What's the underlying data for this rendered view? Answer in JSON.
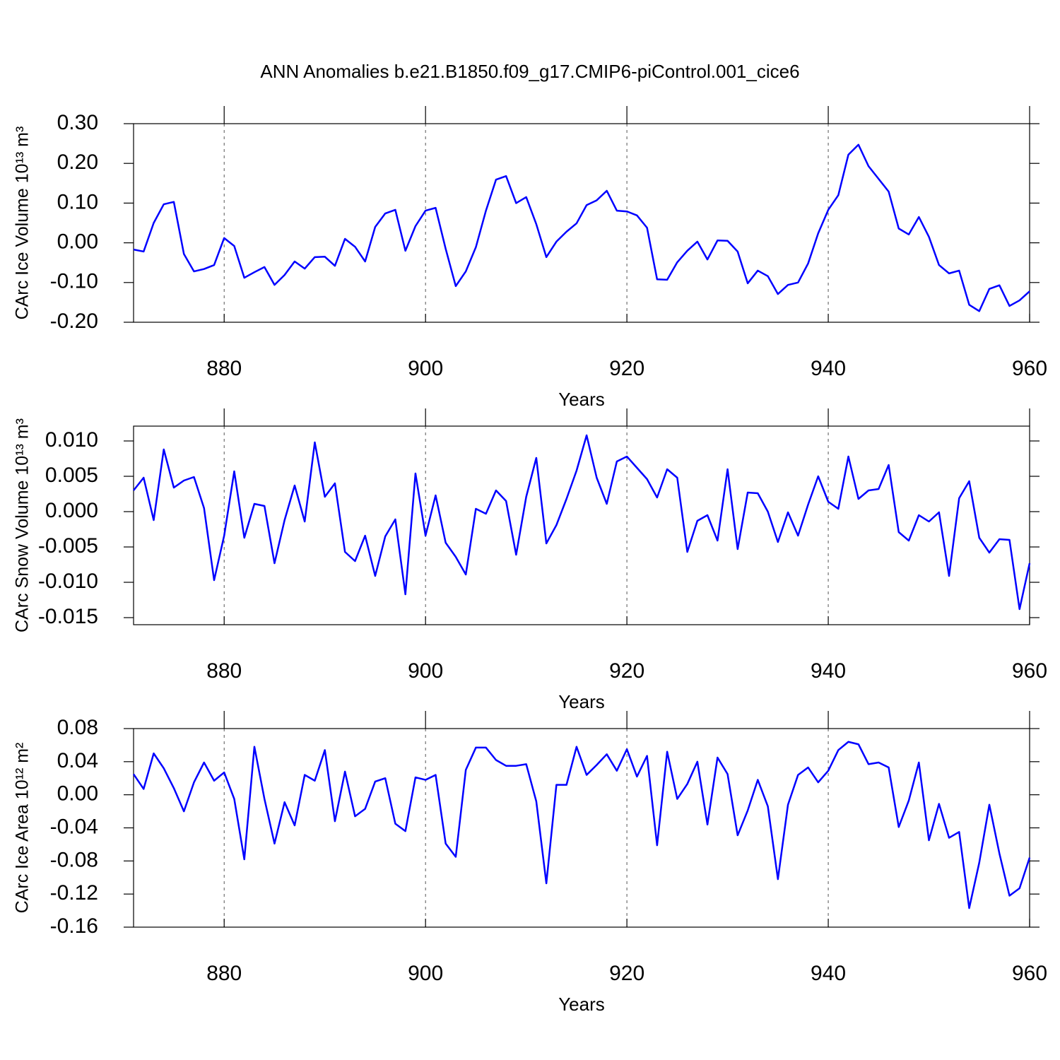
{
  "title": "ANN Anomalies b.e21.B1850.f09_g17.CMIP6-piControl.001_cice6",
  "chart_data": [
    {
      "type": "line",
      "ylabel": "CArc Ice Volume 10¹³ m³",
      "xlabel": "Years",
      "xlim": [
        871,
        960
      ],
      "xticks": [
        880,
        900,
        920,
        940,
        960
      ],
      "xgrid": true,
      "ylim": [
        -0.2,
        0.3
      ],
      "yticks": [
        {
          "value": -0.2,
          "label": "-0.20"
        },
        {
          "value": -0.1,
          "label": "-0.10"
        },
        {
          "value": 0,
          "label": "0.00"
        },
        {
          "value": 0.1,
          "label": "0.10"
        },
        {
          "value": 0.2,
          "label": "0.20"
        },
        {
          "value": 0.3,
          "label": "0.30"
        }
      ],
      "x": [
        871,
        872,
        873,
        874,
        875,
        876,
        877,
        878,
        879,
        880,
        881,
        882,
        883,
        884,
        885,
        886,
        887,
        888,
        889,
        890,
        891,
        892,
        893,
        894,
        895,
        896,
        897,
        898,
        899,
        900,
        901,
        902,
        903,
        904,
        905,
        906,
        907,
        908,
        909,
        910,
        911,
        912,
        913,
        914,
        915,
        916,
        917,
        918,
        919,
        920,
        921,
        922,
        923,
        924,
        925,
        926,
        927,
        928,
        929,
        930,
        931,
        932,
        933,
        934,
        935,
        936,
        937,
        938,
        939,
        940,
        941,
        942,
        943,
        944,
        945,
        946,
        947,
        948,
        949,
        950,
        951,
        952,
        953,
        954,
        955,
        956,
        957,
        958,
        959,
        960
      ],
      "series": [
        {
          "color": "#0000ff",
          "values": [
            -0.017,
            -0.022,
            0.05,
            0.097,
            0.103,
            -0.028,
            -0.072,
            -0.066,
            -0.056,
            0.012,
            -0.008,
            -0.088,
            -0.074,
            -0.061,
            -0.106,
            -0.081,
            -0.047,
            -0.065,
            -0.036,
            -0.035,
            -0.058,
            0.01,
            -0.01,
            -0.047,
            0.04,
            0.074,
            0.083,
            -0.02,
            0.042,
            0.081,
            0.088,
            -0.015,
            -0.109,
            -0.072,
            -0.011,
            0.081,
            0.159,
            0.168,
            0.1,
            0.115,
            0.047,
            -0.036,
            0.003,
            0.028,
            0.049,
            0.095,
            0.107,
            0.131,
            0.081,
            0.079,
            0.069,
            0.038,
            -0.092,
            -0.093,
            -0.049,
            -0.02,
            0.003,
            -0.042,
            0.006,
            0.005,
            -0.022,
            -0.102,
            -0.07,
            -0.084,
            -0.129,
            -0.106,
            -0.1,
            -0.052,
            0.024,
            0.083,
            0.12,
            0.222,
            0.247,
            0.193,
            0.161,
            0.129,
            0.036,
            0.021,
            0.065,
            0.015,
            -0.056,
            -0.077,
            -0.07,
            -0.156,
            -0.172,
            -0.116,
            -0.107,
            -0.159,
            -0.145,
            -0.122
          ]
        }
      ]
    },
    {
      "type": "line",
      "ylabel": "CArc Snow Volume 10¹³ m³",
      "xlabel": "Years",
      "xlim": [
        871,
        960
      ],
      "xticks": [
        880,
        900,
        920,
        940,
        960
      ],
      "xgrid": true,
      "ylim": [
        -0.016,
        0.0121
      ],
      "yticks": [
        {
          "value": -0.015,
          "label": "-0.015"
        },
        {
          "value": -0.01,
          "label": "-0.010"
        },
        {
          "value": -0.005,
          "label": "-0.005"
        },
        {
          "value": 0,
          "label": "0.000"
        },
        {
          "value": 0.005,
          "label": "0.005"
        },
        {
          "value": 0.01,
          "label": "0.010"
        }
      ],
      "x": [
        871,
        872,
        873,
        874,
        875,
        876,
        877,
        878,
        879,
        880,
        881,
        882,
        883,
        884,
        885,
        886,
        887,
        888,
        889,
        890,
        891,
        892,
        893,
        894,
        895,
        896,
        897,
        898,
        899,
        900,
        901,
        902,
        903,
        904,
        905,
        906,
        907,
        908,
        909,
        910,
        911,
        912,
        913,
        914,
        915,
        916,
        917,
        918,
        919,
        920,
        921,
        922,
        923,
        924,
        925,
        926,
        927,
        928,
        929,
        930,
        931,
        932,
        933,
        934,
        935,
        936,
        937,
        938,
        939,
        940,
        941,
        942,
        943,
        944,
        945,
        946,
        947,
        948,
        949,
        950,
        951,
        952,
        953,
        954,
        955,
        956,
        957,
        958,
        959,
        960
      ],
      "series": [
        {
          "color": "#0000ff",
          "values": [
            0.003,
            0.0048,
            -0.0012,
            0.0088,
            0.0034,
            0.0044,
            0.0049,
            0.0005,
            -0.0097,
            -0.0034,
            0.0057,
            -0.0037,
            0.0011,
            0.0008,
            -0.0073,
            -0.0012,
            0.0037,
            -0.0014,
            0.0098,
            0.0021,
            0.004,
            -0.0057,
            -0.007,
            -0.0034,
            -0.0091,
            -0.0035,
            -0.0011,
            -0.0117,
            0.0054,
            -0.0034,
            0.0023,
            -0.0044,
            -0.0064,
            -0.0089,
            0.0004,
            -0.0003,
            0.003,
            0.0015,
            -0.0061,
            0.0021,
            0.0076,
            -0.0045,
            -0.0019,
            0.0018,
            0.0058,
            0.0108,
            0.0048,
            0.0011,
            0.0071,
            0.0078,
            0.0062,
            0.0046,
            0.002,
            0.006,
            0.0048,
            -0.0057,
            -0.0013,
            -0.0005,
            -0.0041,
            0.006,
            -0.0053,
            0.0027,
            0.0026,
            0,
            -0.0043,
            -0.0001,
            -0.0034,
            0.001,
            0.005,
            0.0014,
            0.0004,
            0.0078,
            0.0018,
            0.003,
            0.0032,
            0.0066,
            -0.0029,
            -0.0041,
            -0.0005,
            -0.0014,
            -0.0001,
            -0.0091,
            0.0019,
            0.0043,
            -0.0037,
            -0.0058,
            -0.0039,
            -0.004,
            -0.0138,
            -0.0073
          ]
        }
      ]
    },
    {
      "type": "line",
      "ylabel": "CArc Ice Area 10¹² m²",
      "xlabel": "Years",
      "xlim": [
        871,
        960
      ],
      "xticks": [
        880,
        900,
        920,
        940,
        960
      ],
      "xgrid": true,
      "ylim": [
        -0.16,
        0.08
      ],
      "yticks": [
        {
          "value": -0.16,
          "label": "-0.16"
        },
        {
          "value": -0.12,
          "label": "-0.12"
        },
        {
          "value": -0.08,
          "label": "-0.08"
        },
        {
          "value": -0.04,
          "label": "-0.04"
        },
        {
          "value": 0,
          "label": "0.00"
        },
        {
          "value": 0.04,
          "label": "0.04"
        },
        {
          "value": 0.08,
          "label": "0.08"
        }
      ],
      "x": [
        871,
        872,
        873,
        874,
        875,
        876,
        877,
        878,
        879,
        880,
        881,
        882,
        883,
        884,
        885,
        886,
        887,
        888,
        889,
        890,
        891,
        892,
        893,
        894,
        895,
        896,
        897,
        898,
        899,
        900,
        901,
        902,
        903,
        904,
        905,
        906,
        907,
        908,
        909,
        910,
        911,
        912,
        913,
        914,
        915,
        916,
        917,
        918,
        919,
        920,
        921,
        922,
        923,
        924,
        925,
        926,
        927,
        928,
        929,
        930,
        931,
        932,
        933,
        934,
        935,
        936,
        937,
        938,
        939,
        940,
        941,
        942,
        943,
        944,
        945,
        946,
        947,
        948,
        949,
        950,
        951,
        952,
        953,
        954,
        955,
        956,
        957,
        958,
        959,
        960
      ],
      "series": [
        {
          "color": "#0000ff",
          "values": [
            0.025,
            0.007,
            0.05,
            0.032,
            0.008,
            -0.02,
            0.015,
            0.039,
            0.017,
            0.027,
            -0.005,
            -0.078,
            0.058,
            -0.005,
            -0.059,
            -0.009,
            -0.037,
            0.024,
            0.017,
            0.054,
            -0.032,
            0.028,
            -0.026,
            -0.017,
            0.016,
            0.02,
            -0.035,
            -0.044,
            0.021,
            0.018,
            0.024,
            -0.059,
            -0.075,
            0.03,
            0.057,
            0.057,
            0.042,
            0.035,
            0.035,
            0.037,
            -0.008,
            -0.107,
            0.012,
            0.012,
            0.058,
            0.024,
            0.036,
            0.049,
            0.029,
            0.055,
            0.022,
            0.047,
            -0.061,
            0.052,
            -0.005,
            0.013,
            0.04,
            -0.036,
            0.045,
            0.025,
            -0.049,
            -0.019,
            0.018,
            -0.014,
            -0.102,
            -0.012,
            0.024,
            0.033,
            0.015,
            0.029,
            0.054,
            0.064,
            0.061,
            0.037,
            0.039,
            0.033,
            -0.039,
            -0.007,
            0.039,
            -0.055,
            -0.011,
            -0.052,
            -0.045,
            -0.137,
            -0.082,
            -0.012,
            -0.071,
            -0.122,
            -0.113,
            -0.076
          ]
        }
      ]
    }
  ]
}
